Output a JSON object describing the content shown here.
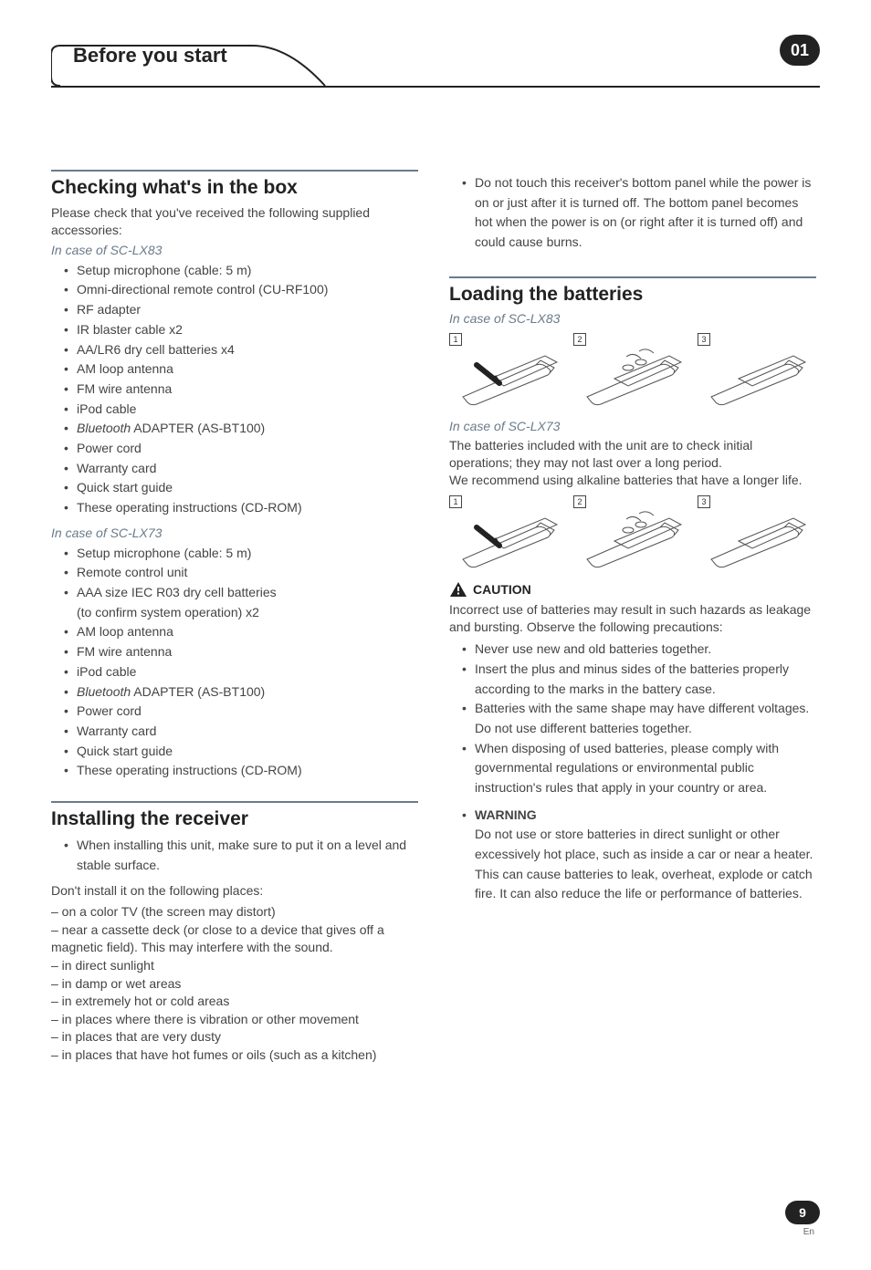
{
  "header": {
    "title": "Before you start",
    "chapter": "01"
  },
  "left": {
    "s1": {
      "title": "Checking what's in the box",
      "intro": "Please check that you've received the following supplied accessories:",
      "case1_label": "In case of SC-LX83",
      "case1_items": [
        "Setup microphone (cable: 5 m)",
        "Omni-directional remote control (CU-RF100)",
        "RF adapter",
        "IR blaster cable x2",
        "AA/LR6 dry cell batteries x4",
        "AM loop antenna",
        "FM wire antenna",
        "iPod cable",
        "Bluetooth ADAPTER (AS-BT100)",
        "Power cord",
        "Warranty card",
        "Quick start guide",
        "These operating instructions (CD-ROM)"
      ],
      "case2_label": "In case of SC-LX73",
      "case2_items": [
        "Setup microphone (cable: 5 m)",
        "Remote control unit",
        "AAA size IEC R03 dry cell batteries\n(to confirm system operation) x2",
        "AM loop antenna",
        "FM wire antenna",
        "iPod cable",
        "Bluetooth ADAPTER (AS-BT100)",
        "Power cord",
        "Warranty card",
        "Quick start guide",
        "These operating instructions (CD-ROM)"
      ]
    },
    "s2": {
      "title": "Installing the receiver",
      "bullet": "When installing this unit, make sure to put it on a level and stable surface.",
      "dontintro": "Don't install it on the following places:",
      "dashes": [
        "– on a color TV (the screen may distort)",
        "– near a cassette deck (or close to a device that gives off a magnetic field). This may interfere with the sound.",
        "– in direct sunlight",
        "– in damp or wet areas",
        "– in extremely hot or cold areas",
        "– in places where there is vibration or other movement",
        "– in places that are very dusty",
        "– in places that have hot fumes or oils (such as a kitchen)"
      ]
    }
  },
  "right": {
    "top_bullet": "Do not touch this receiver's bottom panel while the power is on or just after it is turned off. The bottom panel becomes hot when the power is on (or right after it is turned off) and could cause burns.",
    "s3": {
      "title": "Loading the batteries",
      "case1_label": "In case of SC-LX83",
      "case2_label": "In case of SC-LX73",
      "case2_text": "The batteries included with the unit are to check initial operations; they may not last over a long period.\nWe recommend using alkaline batteries that have a longer life.",
      "caution_label": "CAUTION",
      "caution_intro": "Incorrect use of batteries may result in such hazards as leakage and bursting. Observe the following precautions:",
      "caution_items": [
        "Never use new and old batteries together.",
        "Insert the plus and minus sides of the batteries properly according to the marks in the battery case.",
        "Batteries with the same shape may have different voltages. Do not use different batteries together.",
        "When disposing of used batteries, please comply with governmental regulations or environmental public instruction's rules that apply in your country or area."
      ],
      "warning_label": "WARNING",
      "warning_text": "Do not use or store batteries in direct sunlight or other excessively hot place, such as inside a car or near a heater. This can cause batteries to leak, overheat, explode or catch fire. It can also reduce the life or performance of batteries."
    }
  },
  "footer": {
    "page": "9",
    "lang": "En"
  },
  "colors": {
    "rule": "#6a7a8a",
    "text": "#444444",
    "heading": "#222222",
    "badge_bg": "#222222",
    "badge_fg": "#ffffff"
  },
  "diagram": {
    "steps": [
      "1",
      "2",
      "3"
    ],
    "stroke": "#555555"
  }
}
